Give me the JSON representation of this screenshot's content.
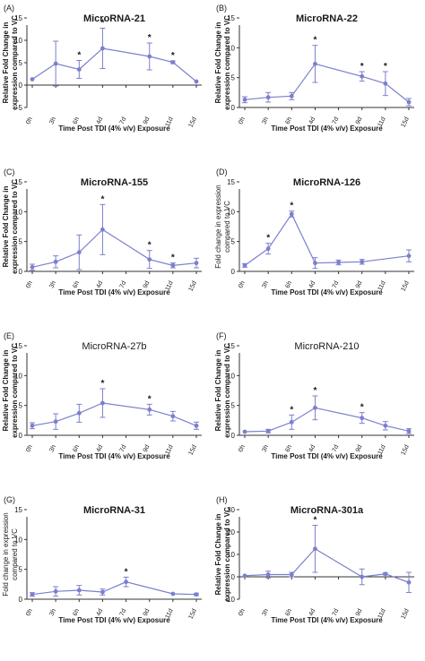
{
  "chart_data": [
    {
      "panel": "(A)",
      "type": "line",
      "title": "MicroRNA-21",
      "title_bold": true,
      "xlabel": "Time Post TDI (4% v/v) Exposure",
      "ylabel": [
        "Relative Fold Change in",
        "expression compared to VC"
      ],
      "ylabel_bold": true,
      "ylim": [
        -5,
        15
      ],
      "yticks": [
        -5,
        0,
        5,
        10,
        15
      ],
      "xticks": [
        "0h",
        "3h",
        "6h",
        "4d",
        "7d",
        "9d",
        "11d",
        "15d"
      ],
      "points": [
        {
          "x": "0h",
          "y": 1.3,
          "err": 0,
          "sig": false
        },
        {
          "x": "3h",
          "y": 4.8,
          "err": 5.0,
          "sig": false
        },
        {
          "x": "6h",
          "y": 3.5,
          "err": 2.0,
          "sig": true
        },
        {
          "x": "4d",
          "y": 8.2,
          "err": 4.5,
          "sig": true
        },
        {
          "x": "9d",
          "y": 6.4,
          "err": 3.0,
          "sig": true
        },
        {
          "x": "11d",
          "y": 5.1,
          "err": 0.3,
          "sig": true
        },
        {
          "x": "15d",
          "y": 0.8,
          "err": 0,
          "sig": false
        }
      ]
    },
    {
      "panel": "(B)",
      "type": "line",
      "title": "MicroRNA-22",
      "title_bold": true,
      "xlabel": "Time Post TDI (4% v/v) Exposure",
      "ylabel": [
        "Relative Fold Change in",
        "expression compared to VC"
      ],
      "ylabel_bold": true,
      "ylim": [
        0,
        15
      ],
      "yticks": [
        0,
        5,
        10,
        15
      ],
      "xticks": [
        "0h",
        "3h",
        "6h",
        "4d",
        "7d",
        "9d",
        "11d",
        "15d"
      ],
      "points": [
        {
          "x": "0h",
          "y": 1.3,
          "err": 0.5,
          "sig": false
        },
        {
          "x": "3h",
          "y": 1.7,
          "err": 0.8,
          "sig": false
        },
        {
          "x": "6h",
          "y": 1.9,
          "err": 0.6,
          "sig": false
        },
        {
          "x": "4d",
          "y": 7.3,
          "err": 3.1,
          "sig": true
        },
        {
          "x": "9d",
          "y": 5.2,
          "err": 0.8,
          "sig": true
        },
        {
          "x": "11d",
          "y": 4.0,
          "err": 2.0,
          "sig": true
        },
        {
          "x": "15d",
          "y": 0.9,
          "err": 0.6,
          "sig": false
        }
      ]
    },
    {
      "panel": "(C)",
      "type": "line",
      "title": "MicroRNA-155",
      "title_bold": true,
      "xlabel": "Time Post TDI (4% v/v) Exposure",
      "ylabel": [
        "Relative Fold Change in",
        "expression compared to VC"
      ],
      "ylabel_bold": true,
      "ylim": [
        0,
        15
      ],
      "yticks": [
        0,
        5,
        10,
        15
      ],
      "xticks": [
        "0h",
        "3h",
        "6h",
        "4d",
        "7d",
        "9d",
        "11d",
        "15d"
      ],
      "points": [
        {
          "x": "0h",
          "y": 0.7,
          "err": 0.5,
          "sig": false
        },
        {
          "x": "3h",
          "y": 1.6,
          "err": 1.0,
          "sig": false
        },
        {
          "x": "6h",
          "y": 3.2,
          "err": 2.9,
          "sig": false
        },
        {
          "x": "4d",
          "y": 7.0,
          "err": 4.2,
          "sig": true
        },
        {
          "x": "9d",
          "y": 2.0,
          "err": 1.5,
          "sig": true
        },
        {
          "x": "11d",
          "y": 1.0,
          "err": 0.4,
          "sig": true
        },
        {
          "x": "15d",
          "y": 1.4,
          "err": 0.8,
          "sig": false
        }
      ]
    },
    {
      "panel": "(D)",
      "type": "line",
      "title": "MicroRNA-126",
      "title_bold": true,
      "xlabel": "Time Post TDI (4% v/v) Exposure",
      "ylabel": [
        "Fold change in expression",
        "compared to VC"
      ],
      "ylabel_bold": false,
      "ylim": [
        0,
        15
      ],
      "yticks": [
        0,
        5,
        10,
        15
      ],
      "xticks": [
        "0h",
        "3h",
        "6h",
        "4d",
        "7d",
        "9d",
        "11d",
        "15d"
      ],
      "points": [
        {
          "x": "0h",
          "y": 1.0,
          "err": 0.3,
          "sig": false
        },
        {
          "x": "3h",
          "y": 3.8,
          "err": 0.9,
          "sig": true
        },
        {
          "x": "6h",
          "y": 9.6,
          "err": 0.5,
          "sig": true
        },
        {
          "x": "4d",
          "y": 1.4,
          "err": 0.9,
          "sig": false
        },
        {
          "x": "7d",
          "y": 1.5,
          "err": 0.4,
          "sig": false
        },
        {
          "x": "9d",
          "y": 1.6,
          "err": 0.4,
          "sig": false
        },
        {
          "x": "15d",
          "y": 2.6,
          "err": 1.0,
          "sig": false
        }
      ]
    },
    {
      "panel": "(E)",
      "type": "line",
      "title": "MicroRNA-27b",
      "title_bold": false,
      "xlabel": "Time Post TDI (4% v/v) Exposure",
      "ylabel": [
        "Relative Fold Change in",
        "expression compared to VC"
      ],
      "ylabel_bold": true,
      "ylim": [
        0,
        15
      ],
      "yticks": [
        0,
        5,
        10,
        15
      ],
      "xticks": [
        "0h",
        "3h",
        "6h",
        "4d",
        "7d",
        "9d",
        "11d",
        "15d"
      ],
      "points": [
        {
          "x": "0h",
          "y": 1.6,
          "err": 0.5,
          "sig": false
        },
        {
          "x": "3h",
          "y": 2.3,
          "err": 1.3,
          "sig": false
        },
        {
          "x": "6h",
          "y": 3.7,
          "err": 1.5,
          "sig": false
        },
        {
          "x": "4d",
          "y": 5.4,
          "err": 2.4,
          "sig": true
        },
        {
          "x": "9d",
          "y": 4.3,
          "err": 0.9,
          "sig": true
        },
        {
          "x": "11d",
          "y": 3.2,
          "err": 0.8,
          "sig": false
        },
        {
          "x": "15d",
          "y": 1.6,
          "err": 0.6,
          "sig": false
        }
      ]
    },
    {
      "panel": "(F)",
      "type": "line",
      "title": "MicroRNA-210",
      "title_bold": false,
      "xlabel": "Time Post TDI (4% v/v) Exposure",
      "ylabel": [
        "Relative Fold Change in",
        "expression compared to VC"
      ],
      "ylabel_bold": true,
      "ylim": [
        0,
        15
      ],
      "yticks": [
        0,
        5,
        10,
        15
      ],
      "xticks": [
        "0h",
        "3h",
        "6h",
        "4d",
        "7d",
        "9d",
        "11d",
        "15d"
      ],
      "points": [
        {
          "x": "0h",
          "y": 0.6,
          "err": 0,
          "sig": false
        },
        {
          "x": "3h",
          "y": 0.7,
          "err": 0.3,
          "sig": false
        },
        {
          "x": "6h",
          "y": 2.2,
          "err": 1.2,
          "sig": true
        },
        {
          "x": "4d",
          "y": 4.6,
          "err": 2.0,
          "sig": true
        },
        {
          "x": "9d",
          "y": 2.9,
          "err": 0.9,
          "sig": true
        },
        {
          "x": "11d",
          "y": 1.6,
          "err": 0.7,
          "sig": false
        },
        {
          "x": "15d",
          "y": 0.7,
          "err": 0.4,
          "sig": false
        }
      ]
    },
    {
      "panel": "(G)",
      "type": "line",
      "title": "MicroRNA-31",
      "title_bold": true,
      "xlabel": "Time Post TDI (4% v/v) Exposure",
      "ylabel": [
        "Fold change in expression",
        "compared to VC"
      ],
      "ylabel_bold": false,
      "ylim": [
        0,
        15
      ],
      "yticks": [
        0,
        5,
        10,
        15
      ],
      "xticks": [
        "0h",
        "3h",
        "6h",
        "4d",
        "7d",
        "9d",
        "11d",
        "15d"
      ],
      "points": [
        {
          "x": "0h",
          "y": 0.8,
          "err": 0.3,
          "sig": false
        },
        {
          "x": "3h",
          "y": 1.3,
          "err": 0.8,
          "sig": false
        },
        {
          "x": "6h",
          "y": 1.5,
          "err": 0.8,
          "sig": false
        },
        {
          "x": "4d",
          "y": 1.2,
          "err": 0.5,
          "sig": false
        },
        {
          "x": "7d",
          "y": 2.9,
          "err": 0.8,
          "sig": true
        },
        {
          "x": "11d",
          "y": 0.9,
          "err": 0,
          "sig": false
        },
        {
          "x": "15d",
          "y": 0.8,
          "err": 0.2,
          "sig": false
        }
      ]
    },
    {
      "panel": "(H)",
      "type": "line",
      "title": "MicroRNA-301a",
      "title_bold": true,
      "xlabel": "Time Post TDI (4% v/v) Exposure",
      "ylabel": [
        "Relative Fold Change in",
        "expression compared to VC"
      ],
      "ylabel_bold": true,
      "ylim": [
        -10,
        30
      ],
      "yticks": [
        -10,
        0,
        10,
        20,
        30
      ],
      "xticks": [
        "0h",
        "3h",
        "6h",
        "4d",
        "7d",
        "9d",
        "11d",
        "15d"
      ],
      "points": [
        {
          "x": "0h",
          "y": 0.5,
          "err": 0,
          "sig": false
        },
        {
          "x": "3h",
          "y": 1.0,
          "err": 1.5,
          "sig": false
        },
        {
          "x": "6h",
          "y": 1.0,
          "err": 1.0,
          "sig": false
        },
        {
          "x": "4d",
          "y": 12.5,
          "err": 10.5,
          "sig": true
        },
        {
          "x": "9d",
          "y": 0.0,
          "err": 3.5,
          "sig": false
        },
        {
          "x": "11d",
          "y": 1.3,
          "err": 0.5,
          "sig": false
        },
        {
          "x": "15d",
          "y": -2.5,
          "err": 4.5,
          "sig": false
        }
      ]
    }
  ],
  "style": {
    "series_color": "#7b7fce",
    "axis_color": "#333333"
  }
}
